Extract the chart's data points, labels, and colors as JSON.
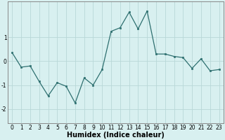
{
  "x": [
    0,
    1,
    2,
    3,
    4,
    5,
    6,
    7,
    8,
    9,
    10,
    11,
    12,
    13,
    14,
    15,
    16,
    17,
    18,
    19,
    20,
    21,
    22,
    23
  ],
  "y": [
    0.35,
    -0.25,
    -0.2,
    -0.85,
    -1.45,
    -0.9,
    -1.05,
    -1.75,
    -0.7,
    -1.0,
    -0.35,
    1.25,
    1.4,
    2.05,
    1.35,
    2.1,
    0.3,
    0.3,
    0.2,
    0.15,
    -0.3,
    0.1,
    -0.4,
    -0.35
  ],
  "line_color": "#2e7070",
  "marker": "s",
  "marker_size": 2.0,
  "bg_color": "#d8f0f0",
  "grid_color": "#b8d8d8",
  "xlabel": "Humidex (Indice chaleur)",
  "ylim": [
    -2.6,
    2.5
  ],
  "xlim": [
    -0.5,
    23.5
  ],
  "yticks": [
    -2,
    -1,
    0,
    1
  ],
  "ytick_labels": [
    "-2",
    "-1",
    "0",
    "1"
  ],
  "xticks": [
    0,
    1,
    2,
    3,
    4,
    5,
    6,
    7,
    8,
    9,
    10,
    11,
    12,
    13,
    14,
    15,
    16,
    17,
    18,
    19,
    20,
    21,
    22,
    23
  ],
  "tick_fontsize": 5.5,
  "xlabel_fontsize": 7.0,
  "spine_color": "#888888",
  "lw": 0.9
}
